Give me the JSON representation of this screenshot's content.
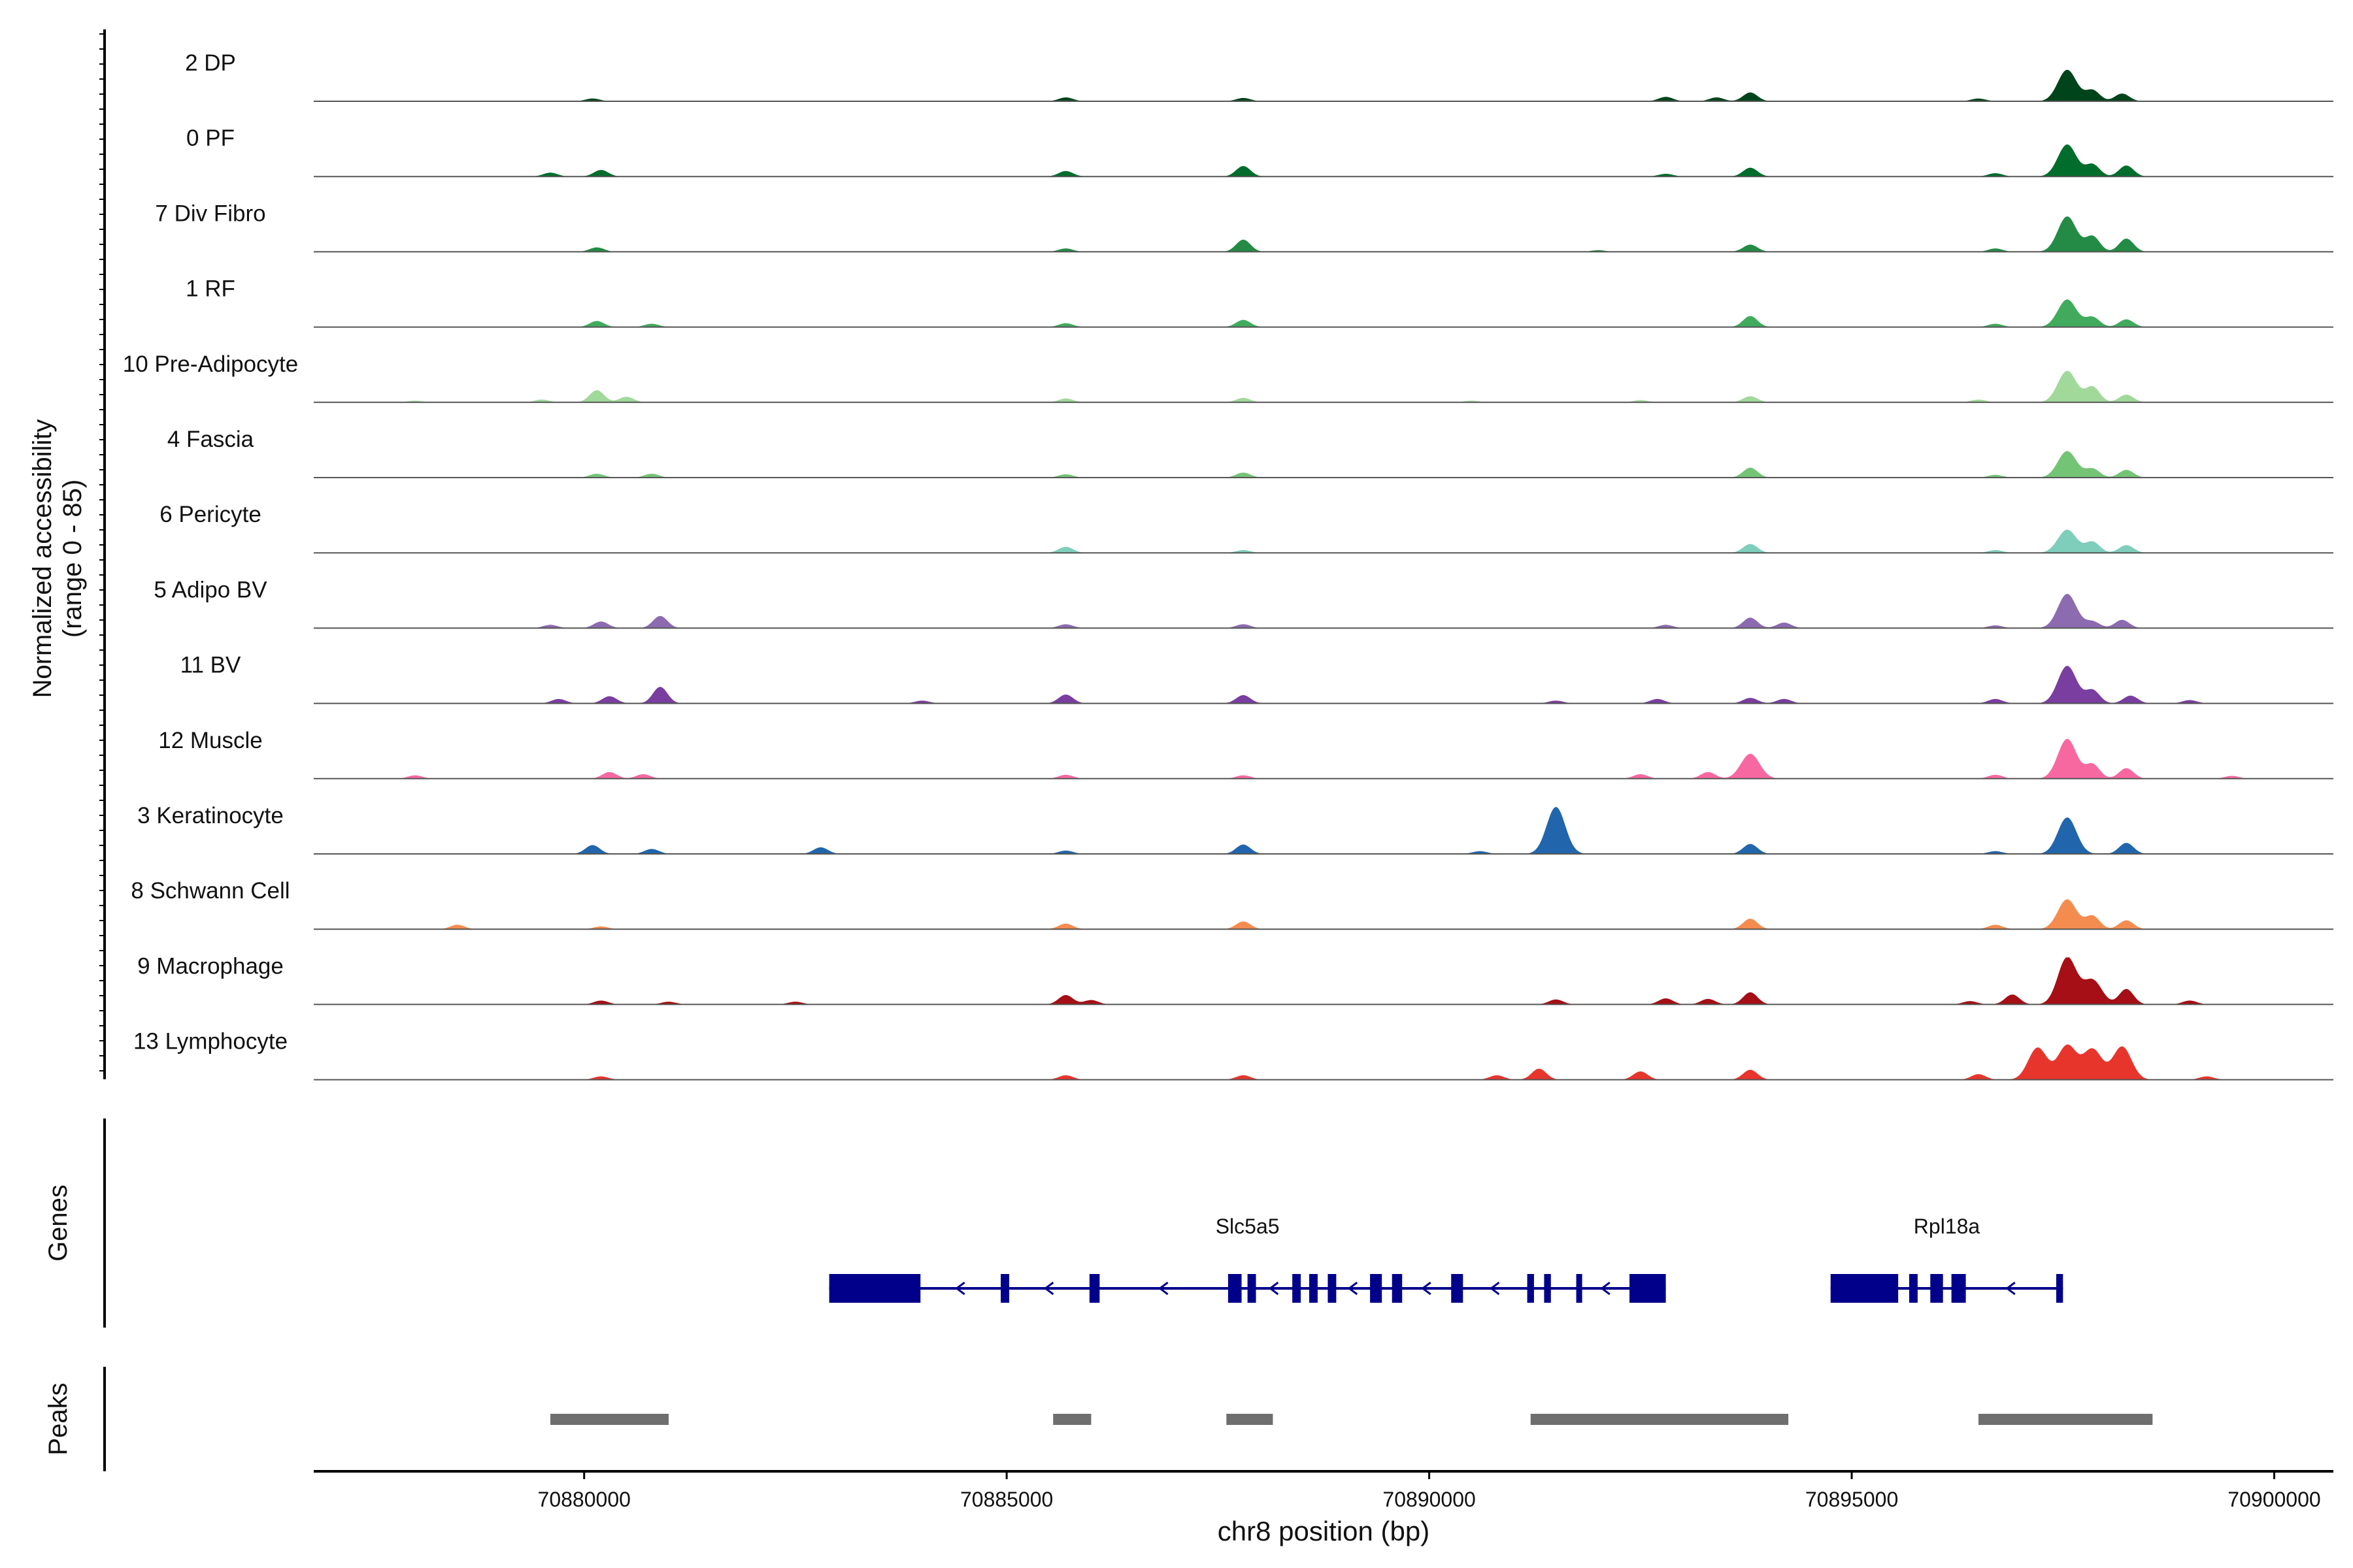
{
  "chart_data": {
    "type": "area",
    "title": "",
    "y_axis_label_line1": "Normalized accessibility",
    "y_axis_label_line2": "(range 0 - 85)",
    "ylim": [
      0,
      85
    ],
    "xlabel": "chr8 position (bp)",
    "xlim": [
      70876800,
      70900700
    ],
    "x_ticks": [
      70880000,
      70885000,
      70890000,
      70895000,
      70900000
    ],
    "x_tick_labels": [
      "70880000",
      "70885000",
      "70890000",
      "70895000",
      "70900000"
    ],
    "grid": false,
    "legend": "none",
    "track_labels": {
      "genes": "Genes",
      "peaks": "Peaks"
    },
    "series": [
      {
        "name": "2 DP",
        "color": "#00441b",
        "peaks": [
          [
            70897550,
            57
          ],
          [
            70897850,
            20
          ],
          [
            70898200,
            14
          ],
          [
            70893800,
            16
          ],
          [
            70892800,
            8
          ],
          [
            70893400,
            7
          ],
          [
            70887800,
            6
          ],
          [
            70885700,
            7
          ],
          [
            70880100,
            5
          ],
          [
            70896500,
            5
          ]
        ]
      },
      {
        "name": "0 PF",
        "color": "#006d2c",
        "peaks": [
          [
            70897550,
            58
          ],
          [
            70897850,
            22
          ],
          [
            70898250,
            20
          ],
          [
            70893800,
            16
          ],
          [
            70887800,
            19
          ],
          [
            70885700,
            10
          ],
          [
            70880200,
            12
          ],
          [
            70879600,
            7
          ],
          [
            70892800,
            5
          ],
          [
            70896700,
            6
          ]
        ]
      },
      {
        "name": "7 Div Fibro",
        "color": "#238b45",
        "peaks": [
          [
            70897550,
            64
          ],
          [
            70897850,
            28
          ],
          [
            70898250,
            24
          ],
          [
            70893800,
            13
          ],
          [
            70887800,
            22
          ],
          [
            70880150,
            8
          ],
          [
            70885700,
            6
          ],
          [
            70892000,
            3
          ],
          [
            70896700,
            6
          ]
        ]
      },
      {
        "name": "1 RF",
        "color": "#41ab5d",
        "peaks": [
          [
            70897550,
            50
          ],
          [
            70897850,
            18
          ],
          [
            70898250,
            14
          ],
          [
            70893800,
            20
          ],
          [
            70887800,
            13
          ],
          [
            70880150,
            11
          ],
          [
            70880800,
            6
          ],
          [
            70885700,
            7
          ],
          [
            70896700,
            6
          ]
        ]
      },
      {
        "name": "10 Pre-Adipocyte",
        "color": "#a1d99b",
        "peaks": [
          [
            70897550,
            57
          ],
          [
            70897850,
            28
          ],
          [
            70898250,
            14
          ],
          [
            70893800,
            11
          ],
          [
            70887800,
            8
          ],
          [
            70880150,
            22
          ],
          [
            70880500,
            10
          ],
          [
            70885700,
            7
          ],
          [
            70879500,
            5
          ],
          [
            70890500,
            3
          ],
          [
            70892500,
            4
          ],
          [
            70896500,
            5
          ],
          [
            70878000,
            3
          ]
        ]
      },
      {
        "name": "4 Fascia",
        "color": "#74c476",
        "peaks": [
          [
            70897550,
            48
          ],
          [
            70897850,
            16
          ],
          [
            70898250,
            14
          ],
          [
            70893800,
            18
          ],
          [
            70887800,
            9
          ],
          [
            70880150,
            7
          ],
          [
            70880800,
            7
          ],
          [
            70885700,
            6
          ],
          [
            70896700,
            5
          ]
        ]
      },
      {
        "name": "6 Pericyte",
        "color": "#7fcdbb",
        "peaks": [
          [
            70897550,
            42
          ],
          [
            70897850,
            20
          ],
          [
            70898250,
            14
          ],
          [
            70893800,
            16
          ],
          [
            70885700,
            11
          ],
          [
            70887800,
            5
          ],
          [
            70896700,
            5
          ]
        ]
      },
      {
        "name": "5 Adipo BV",
        "color": "#8c6bb1",
        "peaks": [
          [
            70897550,
            62
          ],
          [
            70897850,
            12
          ],
          [
            70898200,
            15
          ],
          [
            70893800,
            19
          ],
          [
            70894200,
            10
          ],
          [
            70880900,
            22
          ],
          [
            70880200,
            12
          ],
          [
            70879600,
            6
          ],
          [
            70885700,
            7
          ],
          [
            70887800,
            7
          ],
          [
            70892800,
            6
          ],
          [
            70896700,
            5
          ]
        ]
      },
      {
        "name": "11 BV",
        "color": "#7a3ea0",
        "peaks": [
          [
            70897550,
            68
          ],
          [
            70897850,
            24
          ],
          [
            70898300,
            14
          ],
          [
            70893800,
            10
          ],
          [
            70894200,
            8
          ],
          [
            70880900,
            30
          ],
          [
            70880300,
            13
          ],
          [
            70879700,
            8
          ],
          [
            70885700,
            16
          ],
          [
            70887800,
            15
          ],
          [
            70892700,
            8
          ],
          [
            70896700,
            8
          ],
          [
            70899000,
            6
          ],
          [
            70884000,
            5
          ],
          [
            70891500,
            5
          ]
        ]
      },
      {
        "name": "12 Muscle",
        "color": "#f768a1",
        "peaks": [
          [
            70897550,
            72
          ],
          [
            70897850,
            26
          ],
          [
            70898250,
            19
          ],
          [
            70893800,
            45
          ],
          [
            70893300,
            12
          ],
          [
            70892500,
            8
          ],
          [
            70880300,
            12
          ],
          [
            70880700,
            8
          ],
          [
            70885700,
            7
          ],
          [
            70887800,
            6
          ],
          [
            70896700,
            7
          ],
          [
            70878000,
            6
          ],
          [
            70899500,
            5
          ]
        ]
      },
      {
        "name": "3 Keratinocyte",
        "color": "#2166ac",
        "peaks": [
          [
            70891500,
            85
          ],
          [
            70897550,
            66
          ],
          [
            70898250,
            20
          ],
          [
            70893800,
            18
          ],
          [
            70887800,
            17
          ],
          [
            70882800,
            12
          ],
          [
            70880100,
            16
          ],
          [
            70880800,
            9
          ],
          [
            70885700,
            6
          ],
          [
            70896700,
            5
          ],
          [
            70890600,
            5
          ]
        ]
      },
      {
        "name": "8 Schwann Cell",
        "color": "#f48c50",
        "peaks": [
          [
            70897550,
            54
          ],
          [
            70897850,
            24
          ],
          [
            70898250,
            16
          ],
          [
            70893800,
            19
          ],
          [
            70887800,
            14
          ],
          [
            70885700,
            10
          ],
          [
            70896700,
            8
          ],
          [
            70878500,
            8
          ],
          [
            70880200,
            5
          ]
        ]
      },
      {
        "name": "9 Macrophage",
        "color": "#a50f15",
        "peaks": [
          [
            70897550,
            85
          ],
          [
            70897850,
            44
          ],
          [
            70898250,
            28
          ],
          [
            70896900,
            18
          ],
          [
            70893800,
            22
          ],
          [
            70893300,
            10
          ],
          [
            70885700,
            17
          ],
          [
            70886000,
            8
          ],
          [
            70891500,
            9
          ],
          [
            70892800,
            11
          ],
          [
            70880200,
            7
          ],
          [
            70881000,
            5
          ],
          [
            70882500,
            5
          ],
          [
            70899000,
            7
          ],
          [
            70896400,
            6
          ]
        ]
      },
      {
        "name": "13 Lymphocyte",
        "color": "#e8352c",
        "peaks": [
          [
            70897550,
            62
          ],
          [
            70897200,
            58
          ],
          [
            70897850,
            55
          ],
          [
            70898200,
            60
          ],
          [
            70893800,
            18
          ],
          [
            70891300,
            20
          ],
          [
            70892500,
            15
          ],
          [
            70885700,
            8
          ],
          [
            70887800,
            8
          ],
          [
            70880200,
            6
          ],
          [
            70896500,
            10
          ],
          [
            70899200,
            6
          ],
          [
            70890800,
            8
          ]
        ]
      }
    ],
    "genes": [
      {
        "name": "Slc5a5",
        "start": 70882900,
        "end": 70892800,
        "strand": "-",
        "blocks": [
          [
            70882900,
            70883980
          ],
          [
            70884930,
            70885030
          ],
          [
            70885980,
            70886100
          ],
          [
            70887620,
            70887780
          ],
          [
            70887850,
            70887950
          ],
          [
            70888380,
            70888480
          ],
          [
            70888580,
            70888680
          ],
          [
            70888800,
            70888900
          ],
          [
            70889300,
            70889440
          ],
          [
            70889560,
            70889680
          ],
          [
            70890260,
            70890400
          ],
          [
            70891160,
            70891240
          ],
          [
            70891360,
            70891440
          ],
          [
            70891740,
            70891810
          ],
          [
            70892370,
            70892800
          ]
        ]
      },
      {
        "name": "Rpl18a",
        "start": 70894750,
        "end": 70897500,
        "strand": "-",
        "blocks": [
          [
            70894750,
            70895550
          ],
          [
            70895680,
            70895780
          ],
          [
            70895930,
            70896080
          ],
          [
            70896180,
            70896350
          ],
          [
            70897420,
            70897500
          ]
        ]
      }
    ],
    "peaks_track": [
      [
        70879600,
        70881000
      ],
      [
        70885550,
        70886000
      ],
      [
        70887600,
        70888150
      ],
      [
        70891200,
        70894250
      ],
      [
        70896500,
        70898560
      ]
    ]
  }
}
